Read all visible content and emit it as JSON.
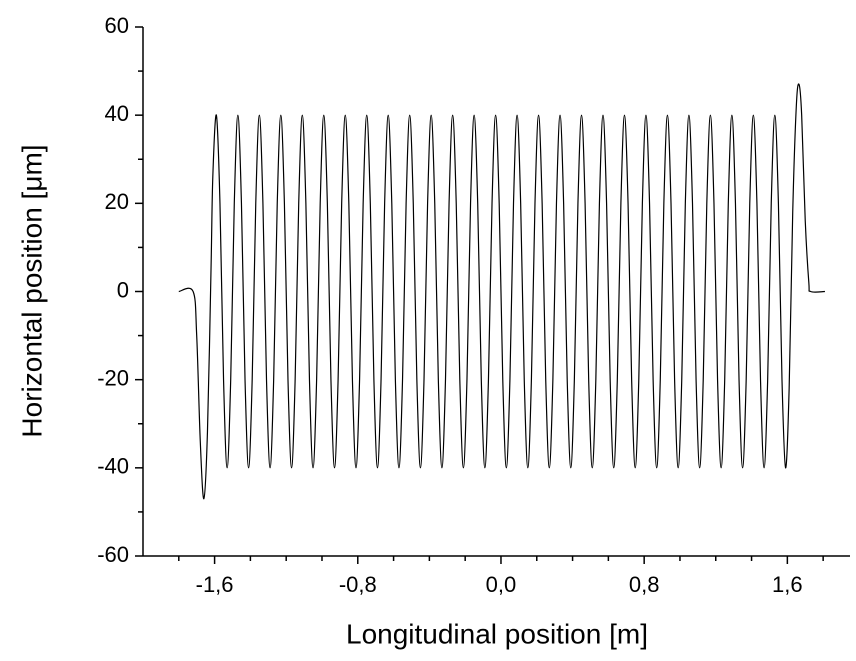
{
  "chart_data": {
    "type": "line",
    "xlabel": "Longitudinal position [m]",
    "ylabel": "Horizontal position [μm]",
    "xlim": [
      -2.0,
      1.95
    ],
    "ylim": [
      -60,
      60
    ],
    "xticks": [
      {
        "value": -1.6,
        "label": "-1,6"
      },
      {
        "value": -0.8,
        "label": "-0,8"
      },
      {
        "value": 0.0,
        "label": "0,0"
      },
      {
        "value": 0.8,
        "label": "0,8"
      },
      {
        "value": 1.6,
        "label": "1,6"
      }
    ],
    "xminorticks": [
      -1.8,
      -1.4,
      -1.2,
      -1.0,
      -0.6,
      -0.4,
      -0.2,
      0.2,
      0.4,
      0.6,
      1.0,
      1.2,
      1.4,
      1.8
    ],
    "yticks": [
      -60,
      -40,
      -20,
      0,
      20,
      40,
      60
    ],
    "yminorticks": [
      -50,
      -30,
      -10,
      10,
      30,
      50
    ],
    "color": "#000000",
    "x": [
      -1.8,
      -1.72,
      -1.7,
      -1.68,
      -1.66,
      -1.64,
      -1.62,
      -1.61,
      -1.59,
      -1.57,
      -1.55,
      -1.53,
      -1.51,
      -1.49,
      -1.47,
      -1.45,
      -1.43,
      -1.41,
      -1.39,
      -1.37,
      -1.35,
      -1.33,
      -1.31,
      -1.29,
      -1.27,
      -1.25,
      -1.23,
      -1.21,
      -1.19,
      -1.17,
      -1.15,
      -1.13,
      -1.11,
      -1.09,
      -1.07,
      -1.05,
      -1.03,
      -1.01,
      -0.99,
      -0.97,
      -0.95,
      -0.93,
      -0.91,
      -0.89,
      -0.87,
      -0.85,
      -0.83,
      -0.81,
      -0.79,
      -0.77,
      -0.75,
      -0.73,
      -0.71,
      -0.69,
      -0.67,
      -0.65,
      -0.63,
      -0.61,
      -0.59,
      -0.57,
      -0.55,
      -0.53,
      -0.51,
      -0.49,
      -0.47,
      -0.45,
      -0.43,
      -0.41,
      -0.39,
      -0.37,
      -0.35,
      -0.33,
      -0.31,
      -0.29,
      -0.27,
      -0.25,
      -0.23,
      -0.21,
      -0.19,
      -0.17,
      -0.15,
      -0.13,
      -0.11,
      -0.09,
      -0.07,
      -0.05,
      -0.03,
      -0.01,
      0.01,
      0.03,
      0.05,
      0.07,
      0.09,
      0.11,
      0.13,
      0.15,
      0.17,
      0.19,
      0.21,
      0.23,
      0.25,
      0.27,
      0.29,
      0.31,
      0.33,
      0.35,
      0.37,
      0.39,
      0.41,
      0.43,
      0.45,
      0.47,
      0.49,
      0.51,
      0.53,
      0.55,
      0.57,
      0.59,
      0.61,
      0.63,
      0.65,
      0.67,
      0.69,
      0.71,
      0.73,
      0.75,
      0.77,
      0.79,
      0.81,
      0.83,
      0.85,
      0.87,
      0.89,
      0.91,
      0.93,
      0.95,
      0.97,
      0.99,
      1.01,
      1.03,
      1.05,
      1.07,
      1.09,
      1.11,
      1.13,
      1.15,
      1.17,
      1.19,
      1.21,
      1.23,
      1.25,
      1.27,
      1.29,
      1.31,
      1.33,
      1.35,
      1.37,
      1.39,
      1.41,
      1.43,
      1.45,
      1.47,
      1.49,
      1.51,
      1.53,
      1.55,
      1.57,
      1.59,
      1.61,
      1.63,
      1.65,
      1.665,
      1.68,
      1.7,
      1.72,
      1.73,
      1.81
    ],
    "values": [
      0,
      0,
      -10,
      -34,
      -47,
      -32,
      5,
      26,
      40,
      20,
      -20,
      -40,
      -20,
      20,
      40,
      20,
      -20,
      -40,
      -20,
      20,
      40,
      20,
      -20,
      -40,
      -20,
      20,
      40,
      20,
      -20,
      -40,
      -20,
      20,
      40,
      20,
      -20,
      -40,
      -20,
      20,
      40,
      20,
      -20,
      -40,
      -20,
      20,
      40,
      20,
      -20,
      -40,
      -20,
      20,
      40,
      20,
      -20,
      -40,
      -20,
      20,
      40,
      20,
      -20,
      -40,
      -20,
      20,
      40,
      20,
      -20,
      -40,
      -20,
      20,
      40,
      20,
      -20,
      -40,
      -20,
      20,
      40,
      20,
      -20,
      -40,
      -20,
      20,
      40,
      20,
      -20,
      -40,
      -20,
      20,
      40,
      20,
      -20,
      -40,
      -20,
      20,
      40,
      20,
      -20,
      -40,
      -20,
      20,
      40,
      20,
      -20,
      -40,
      -20,
      20,
      40,
      20,
      -20,
      -40,
      -20,
      20,
      40,
      20,
      -20,
      -40,
      -20,
      20,
      40,
      20,
      -20,
      -40,
      -20,
      20,
      40,
      20,
      -20,
      -40,
      -20,
      20,
      40,
      20,
      -20,
      -40,
      -20,
      20,
      40,
      20,
      -20,
      -40,
      -20,
      20,
      40,
      20,
      -20,
      -40,
      -20,
      20,
      40,
      20,
      -20,
      -40,
      -20,
      20,
      40,
      20,
      -20,
      -40,
      -20,
      20,
      40,
      20,
      -20,
      -40,
      -20,
      20,
      40,
      20,
      -20,
      -40,
      -22,
      18,
      42,
      47,
      40,
      16,
      2,
      0,
      0
    ]
  }
}
